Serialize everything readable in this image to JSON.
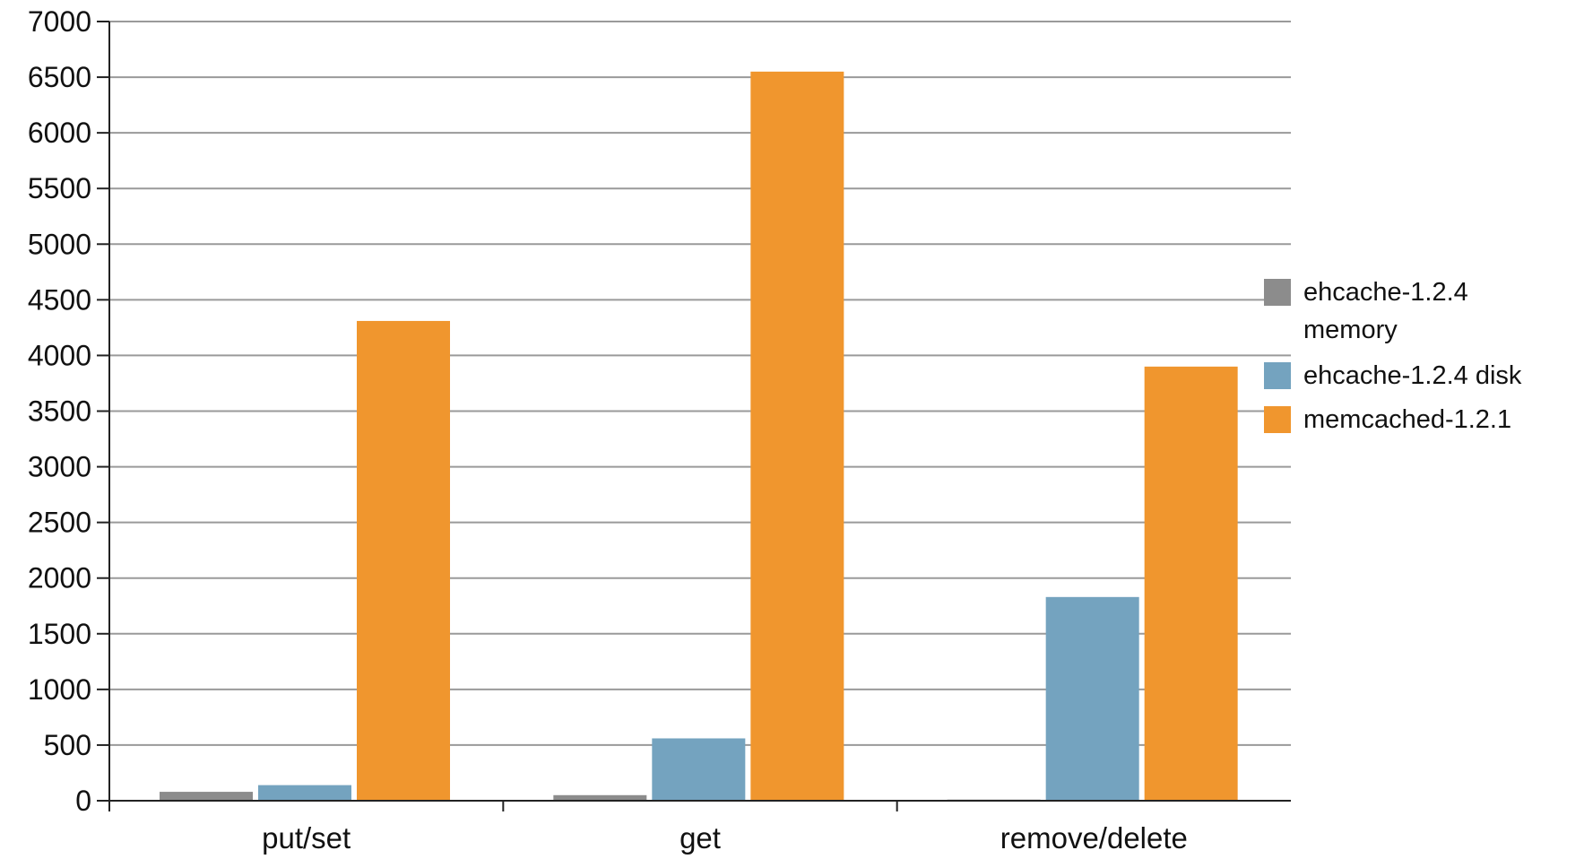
{
  "chart_data": {
    "type": "bar",
    "title": "",
    "xlabel": "",
    "ylabel": "",
    "categories": [
      "put/set",
      "get",
      "remove/delete"
    ],
    "series": [
      {
        "name": "ehcache-1.2.4 memory",
        "values": [
          80,
          50,
          10
        ]
      },
      {
        "name": "ehcache-1.2.4 disk",
        "values": [
          140,
          560,
          1830
        ]
      },
      {
        "name": "memcached-1.2.1",
        "values": [
          4310,
          6550,
          3900
        ]
      }
    ],
    "ylim": [
      0,
      7000
    ],
    "yticks": [
      0,
      500,
      1000,
      1500,
      2000,
      2500,
      3000,
      3500,
      4000,
      4500,
      5000,
      5500,
      6000,
      6500,
      7000
    ],
    "grid": true,
    "legend": {
      "placement": "right",
      "items": [
        {
          "lines": [
            "ehcache-1.2.4",
            "memory"
          ]
        },
        {
          "lines": [
            "ehcache-1.2.4 disk"
          ]
        },
        {
          "lines": [
            "memcached-1.2.1"
          ]
        }
      ]
    },
    "colors": [
      "#8c8c8c",
      "#74a3bf",
      "#f0962e"
    ]
  }
}
